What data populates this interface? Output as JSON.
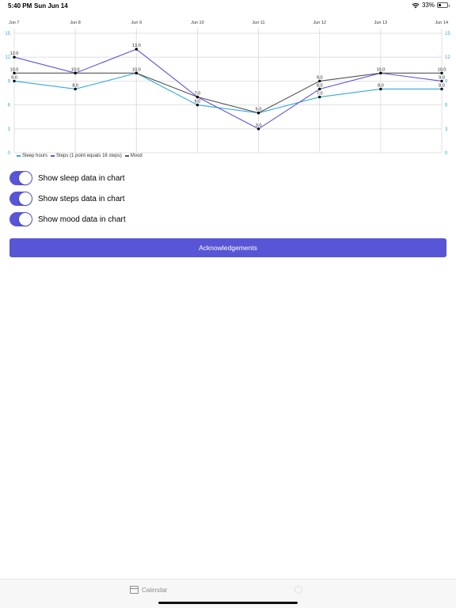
{
  "status_bar": {
    "time": "5:40 PM",
    "date": "Sun Jun 14",
    "battery": "33%",
    "battery_level": 0.33
  },
  "colors": {
    "accent": "#5856d6",
    "sleep": "#34aadc",
    "steps": "#5856d6",
    "mood": "#555555",
    "grid": "#d9d9d9",
    "axis_tick": "#34aadc"
  },
  "chart_data": {
    "type": "line",
    "x": [
      "Jun 7",
      "Jun 8",
      "Jun 9",
      "Jun 10",
      "Jun 11",
      "Jun 12",
      "Jun 13",
      "Jun 14"
    ],
    "ylim": [
      0,
      15
    ],
    "yticks": [
      0,
      3,
      6,
      9,
      12,
      15
    ],
    "grid": true,
    "legend_position": "bottom-left",
    "series": [
      {
        "name": "Sleep hours",
        "values": [
          9,
          8,
          10,
          6,
          5,
          7,
          8,
          8
        ]
      },
      {
        "name": "Steps (1 point equals 16 steps)",
        "values": [
          12,
          10,
          13,
          7,
          3,
          8,
          10,
          9
        ]
      },
      {
        "name": "Mood",
        "values": [
          10,
          10,
          10,
          7,
          5,
          9,
          10,
          10
        ]
      }
    ],
    "data_labels": [
      {
        "x": "Jun 7",
        "texts": [
          "12.0",
          "10.0",
          "9.0"
        ]
      },
      {
        "x": "Jun 8",
        "texts": [
          "10.0",
          "8.0"
        ]
      },
      {
        "x": "Jun 9",
        "texts": [
          "13.0",
          "10.0"
        ]
      },
      {
        "x": "Jun 10",
        "texts": [
          "7.0",
          "6.0"
        ]
      },
      {
        "x": "Jun 11",
        "texts": [
          "5.0",
          "3.0"
        ]
      },
      {
        "x": "Jun 12",
        "texts": [
          "9.0",
          "8.0",
          "7.0"
        ]
      },
      {
        "x": "Jun 13",
        "texts": [
          "10.0",
          "8.0"
        ]
      },
      {
        "x": "Jun 14",
        "texts": [
          "10.0",
          "9.0",
          "8.0"
        ]
      }
    ]
  },
  "legend": {
    "items": [
      "Sleep hours",
      "Steps (1 point equals 16 steps)",
      "Mood"
    ]
  },
  "toggles": [
    {
      "label": "Show sleep data in chart",
      "on": true
    },
    {
      "label": "Show steps data in chart",
      "on": true
    },
    {
      "label": "Show mood data in chart",
      "on": true
    }
  ],
  "acknowledgements_button": "Acknowledgements",
  "tab_bar": {
    "calendar_label": "Calendar",
    "calendar_icon": "calendar-icon",
    "second_icon": "clock-icon"
  }
}
